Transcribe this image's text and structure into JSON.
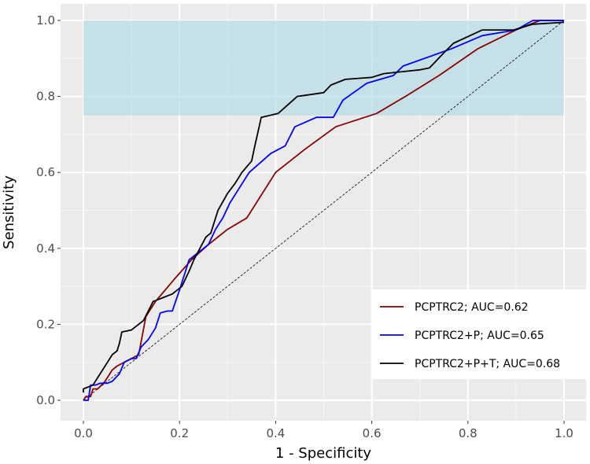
{
  "chart_data": {
    "type": "line",
    "title": "",
    "xlabel": "1 - Specificity",
    "ylabel": "Sensitivity",
    "xlim": [
      0,
      1
    ],
    "ylim": [
      0,
      1
    ],
    "x_ticks": [
      "0.0",
      "0.2",
      "0.4",
      "0.6",
      "0.8",
      "1.0"
    ],
    "y_ticks": [
      "0.0",
      "0.2",
      "0.4",
      "0.6",
      "0.8",
      "1.0"
    ],
    "grid": true,
    "background_color": "#ebebeb",
    "legend_position": "bottom-right",
    "highlight_region": {
      "x": [
        0,
        1
      ],
      "y": [
        0.75,
        1.0
      ],
      "color": "#add8e6"
    },
    "reference_line": {
      "from": [
        0,
        0
      ],
      "to": [
        1,
        1
      ],
      "style": "dashed"
    },
    "series": [
      {
        "name": "PCPTRC2; AUC=0.62",
        "color": "#8b0000",
        "points": [
          [
            0.0,
            0.0
          ],
          [
            0.005,
            0.01
          ],
          [
            0.015,
            0.01
          ],
          [
            0.02,
            0.03
          ],
          [
            0.03,
            0.03
          ],
          [
            0.045,
            0.05
          ],
          [
            0.06,
            0.08
          ],
          [
            0.07,
            0.09
          ],
          [
            0.085,
            0.1
          ],
          [
            0.1,
            0.11
          ],
          [
            0.115,
            0.12
          ],
          [
            0.13,
            0.22
          ],
          [
            0.15,
            0.26
          ],
          [
            0.19,
            0.32
          ],
          [
            0.225,
            0.37
          ],
          [
            0.26,
            0.41
          ],
          [
            0.3,
            0.45
          ],
          [
            0.34,
            0.48
          ],
          [
            0.4,
            0.6
          ],
          [
            0.46,
            0.66
          ],
          [
            0.525,
            0.72
          ],
          [
            0.61,
            0.755
          ],
          [
            0.67,
            0.8
          ],
          [
            0.74,
            0.855
          ],
          [
            0.82,
            0.925
          ],
          [
            0.9,
            0.975
          ],
          [
            0.95,
            1.0
          ],
          [
            1.0,
            1.0
          ]
        ]
      },
      {
        "name": "PCPTRC2+P; AUC=0.65",
        "color": "#0000ff",
        "points": [
          [
            0.0,
            0.0
          ],
          [
            0.01,
            0.0
          ],
          [
            0.015,
            0.04
          ],
          [
            0.025,
            0.04
          ],
          [
            0.035,
            0.045
          ],
          [
            0.05,
            0.045
          ],
          [
            0.06,
            0.05
          ],
          [
            0.075,
            0.07
          ],
          [
            0.085,
            0.1
          ],
          [
            0.1,
            0.11
          ],
          [
            0.11,
            0.11
          ],
          [
            0.12,
            0.14
          ],
          [
            0.135,
            0.16
          ],
          [
            0.15,
            0.19
          ],
          [
            0.16,
            0.23
          ],
          [
            0.175,
            0.235
          ],
          [
            0.185,
            0.235
          ],
          [
            0.2,
            0.29
          ],
          [
            0.22,
            0.37
          ],
          [
            0.26,
            0.41
          ],
          [
            0.275,
            0.45
          ],
          [
            0.29,
            0.48
          ],
          [
            0.305,
            0.52
          ],
          [
            0.345,
            0.6
          ],
          [
            0.39,
            0.65
          ],
          [
            0.42,
            0.67
          ],
          [
            0.44,
            0.72
          ],
          [
            0.485,
            0.745
          ],
          [
            0.52,
            0.745
          ],
          [
            0.54,
            0.79
          ],
          [
            0.59,
            0.835
          ],
          [
            0.645,
            0.855
          ],
          [
            0.665,
            0.88
          ],
          [
            0.765,
            0.925
          ],
          [
            0.83,
            0.96
          ],
          [
            0.9,
            0.975
          ],
          [
            0.935,
            1.0
          ],
          [
            1.0,
            1.0
          ]
        ]
      },
      {
        "name": "PCPTRC2+P+T; AUC=0.68",
        "color": "#000000",
        "points": [
          [
            0.0,
            0.02
          ],
          [
            0.0,
            0.03
          ],
          [
            0.02,
            0.04
          ],
          [
            0.03,
            0.06
          ],
          [
            0.04,
            0.08
          ],
          [
            0.05,
            0.1
          ],
          [
            0.06,
            0.12
          ],
          [
            0.07,
            0.13
          ],
          [
            0.075,
            0.15
          ],
          [
            0.08,
            0.18
          ],
          [
            0.1,
            0.185
          ],
          [
            0.125,
            0.21
          ],
          [
            0.145,
            0.26
          ],
          [
            0.165,
            0.27
          ],
          [
            0.185,
            0.28
          ],
          [
            0.205,
            0.3
          ],
          [
            0.22,
            0.34
          ],
          [
            0.23,
            0.37
          ],
          [
            0.255,
            0.43
          ],
          [
            0.265,
            0.44
          ],
          [
            0.28,
            0.5
          ],
          [
            0.3,
            0.545
          ],
          [
            0.315,
            0.57
          ],
          [
            0.33,
            0.6
          ],
          [
            0.35,
            0.63
          ],
          [
            0.355,
            0.66
          ],
          [
            0.37,
            0.745
          ],
          [
            0.405,
            0.755
          ],
          [
            0.445,
            0.8
          ],
          [
            0.5,
            0.81
          ],
          [
            0.515,
            0.83
          ],
          [
            0.545,
            0.845
          ],
          [
            0.6,
            0.85
          ],
          [
            0.625,
            0.86
          ],
          [
            0.7,
            0.87
          ],
          [
            0.72,
            0.875
          ],
          [
            0.75,
            0.915
          ],
          [
            0.77,
            0.94
          ],
          [
            0.83,
            0.975
          ],
          [
            0.895,
            0.975
          ],
          [
            0.935,
            0.99
          ],
          [
            1.0,
            0.995
          ]
        ]
      }
    ]
  }
}
